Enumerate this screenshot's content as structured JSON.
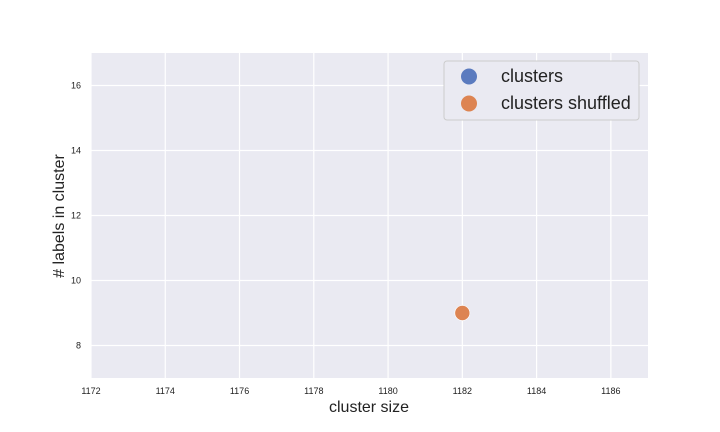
{
  "chart_data": {
    "type": "scatter",
    "xlabel": "cluster size",
    "ylabel": "# labels in cluster",
    "xlim": [
      1172,
      1187
    ],
    "ylim": [
      7,
      17
    ],
    "xticks": [
      1172,
      1174,
      1176,
      1178,
      1180,
      1182,
      1184,
      1186
    ],
    "yticks": [
      8,
      10,
      12,
      14,
      16
    ],
    "grid": true,
    "legend_position": "top-right",
    "series": [
      {
        "name": "clusters",
        "color": "#5b7bbf",
        "points": [
          {
            "x": 1182,
            "y": 9
          }
        ]
      },
      {
        "name": "clusters shuffled",
        "color": "#dd8452",
        "points": [
          {
            "x": 1182,
            "y": 9
          }
        ]
      }
    ]
  }
}
